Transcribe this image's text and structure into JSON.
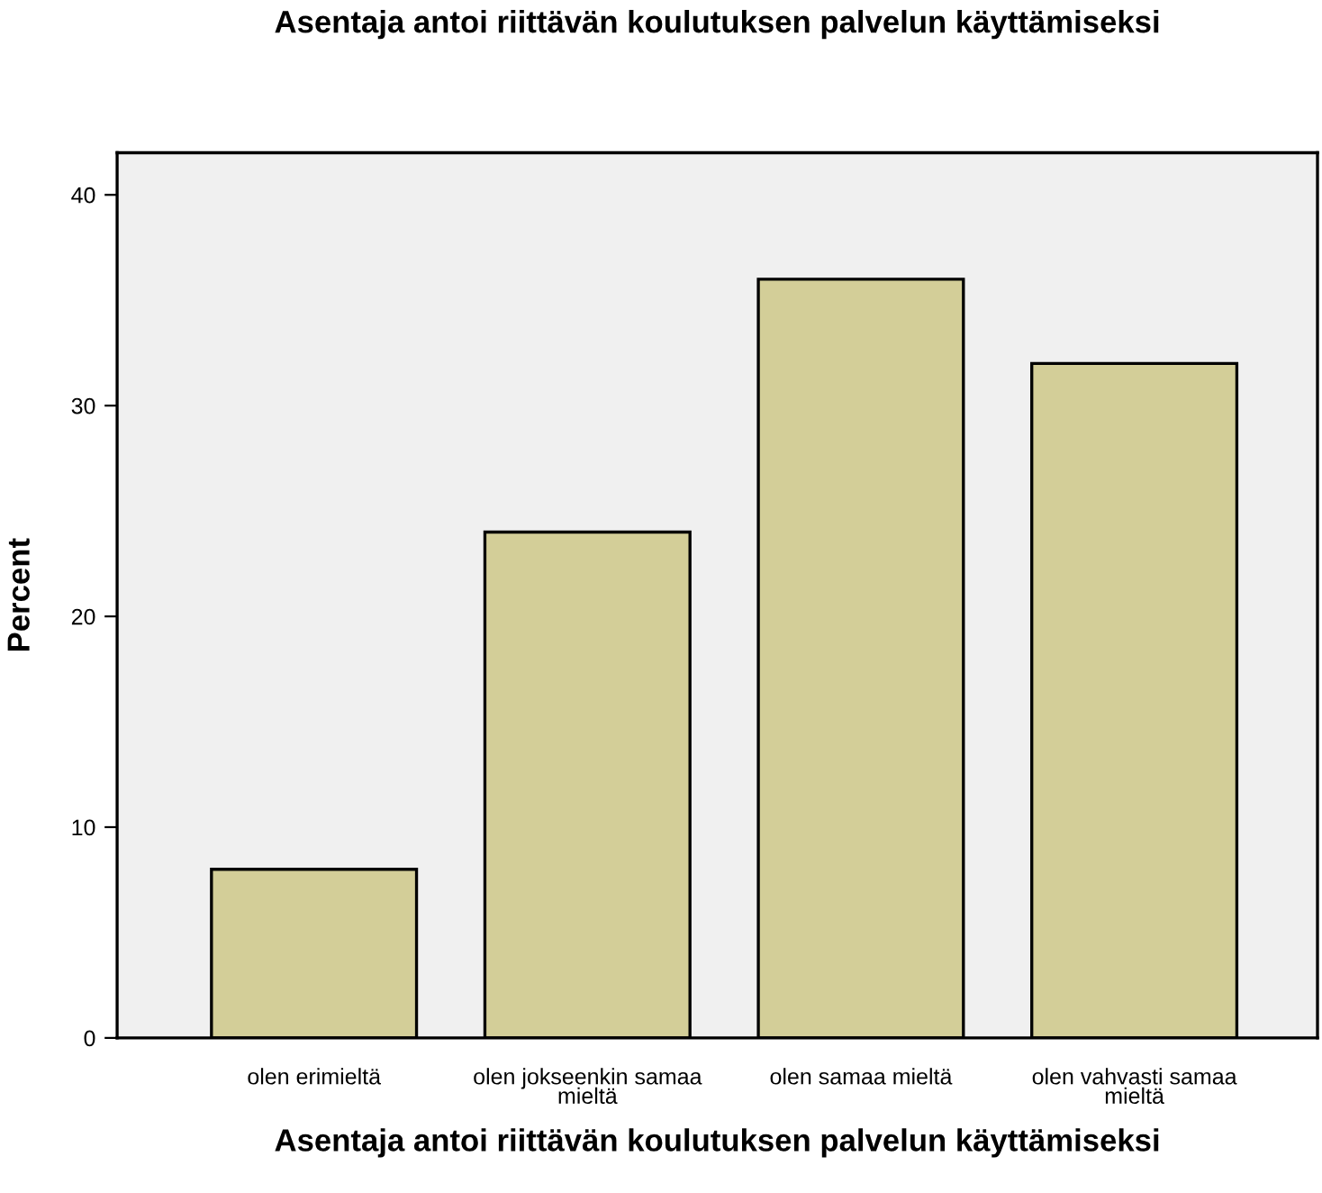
{
  "chart_data": {
    "type": "bar",
    "title": "Asentaja antoi riittävän koulutuksen palvelun käyttämiseksi",
    "xlabel": "Asentaja antoi riittävän koulutuksen palvelun käyttämiseksi",
    "ylabel": "Percent",
    "categories": [
      "olen erimieltä",
      "olen jokseenkin samaa\nmieltä",
      "olen samaa mieltä",
      "olen vahvasti samaa\nmieltä"
    ],
    "values": [
      8,
      24,
      36,
      32
    ],
    "color": "#d3ce98",
    "ylim": [
      0,
      42
    ],
    "yticks": [
      0,
      10,
      20,
      30,
      40
    ],
    "grid": false,
    "legend": false
  }
}
